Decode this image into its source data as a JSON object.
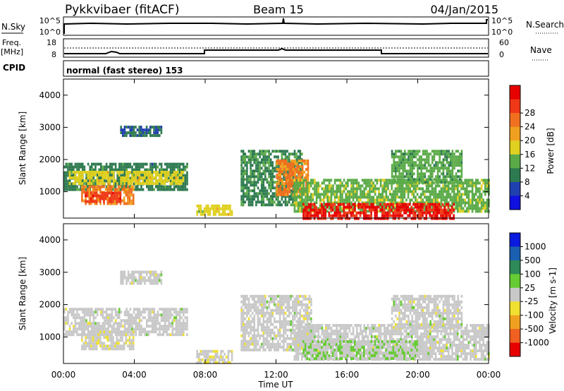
{
  "header": {
    "station": "Pykkvibaer (fitACF)",
    "beam": "Beam 15",
    "date": "04/Jan/2015"
  },
  "strips": {
    "nsky_label": "N.Sky",
    "nsearch_label": "N.Search",
    "freq_label_top": "Freq.",
    "freq_label_unit": "[MHz]",
    "cpid_label": "CPID",
    "nave_label": "Nave",
    "nsky_tick_top": "10^5",
    "nsky_tick_bottom": "10^0",
    "nsearch_tick_top": "10^5",
    "nsearch_tick_bottom": "10^0",
    "freq_tick_top": "18",
    "freq_tick_bottom": "8",
    "nave_tick_top": "60",
    "nave_tick_bottom": "0",
    "cpid_text": "normal (fast stereo) 153"
  },
  "axes": {
    "ylabel": "Slant Range [km]",
    "xlabel": "Time UT",
    "yticks": [
      "1000",
      "2000",
      "3000",
      "4000"
    ],
    "xticks": [
      "00:00",
      "04:00",
      "08:00",
      "12:00",
      "16:00",
      "20:00",
      "00:00"
    ]
  },
  "power_scale": {
    "label": "Power [dB]",
    "ticks": [
      "4",
      "8",
      "12",
      "16",
      "20",
      "24",
      "28"
    ],
    "colors": [
      "#1010e0",
      "#2040b0",
      "#2e7a50",
      "#5aaa48",
      "#e0d020",
      "#f0a020",
      "#f07020",
      "#f03818",
      "#e80000"
    ]
  },
  "velocity_scale": {
    "label": "Velocity [m s-1]",
    "ticks": [
      "1000",
      "500",
      "100",
      "25",
      "-25",
      "-100",
      "-500",
      "-1000"
    ],
    "colors": [
      "#0a1ae0",
      "#1a5fb0",
      "#2e8a58",
      "#66cc33",
      "#c8c8c8",
      "#f0e030",
      "#f0a020",
      "#f06020",
      "#e80000"
    ]
  },
  "chart_data": [
    {
      "type": "heatmap",
      "title": "Power",
      "x_range": [
        "00:00",
        "24:00"
      ],
      "ylim": [
        180,
        4500
      ],
      "colorbar": {
        "label": "Power [dB]",
        "range": [
          0,
          32
        ]
      },
      "regions": [
        {
          "t0": 0.0,
          "t1": 7.0,
          "r0": 1100,
          "r1": 1900,
          "value": 9
        },
        {
          "t0": 0.3,
          "t1": 6.8,
          "r0": 1250,
          "r1": 1650,
          "value": 16
        },
        {
          "t0": 1.0,
          "t1": 4.0,
          "r0": 650,
          "r1": 1200,
          "value": 22
        },
        {
          "t0": 1.2,
          "t1": 3.2,
          "r0": 700,
          "r1": 1000,
          "value": 27
        },
        {
          "t0": 3.2,
          "t1": 5.5,
          "r0": 2700,
          "r1": 3050,
          "value": 7
        },
        {
          "t0": 7.5,
          "t1": 9.5,
          "r0": 250,
          "r1": 600,
          "value": 16
        },
        {
          "t0": 10.0,
          "t1": 13.5,
          "r0": 600,
          "r1": 2300,
          "value": 10
        },
        {
          "t0": 12.0,
          "t1": 13.8,
          "r0": 900,
          "r1": 2000,
          "value": 22
        },
        {
          "t0": 13.0,
          "t1": 24.0,
          "r0": 400,
          "r1": 1400,
          "value": 13
        },
        {
          "t0": 13.5,
          "t1": 22.0,
          "r0": 200,
          "r1": 650,
          "value": 29
        },
        {
          "t0": 18.5,
          "t1": 22.5,
          "r0": 1300,
          "r1": 2300,
          "value": 12
        }
      ]
    },
    {
      "type": "heatmap",
      "title": "Velocity",
      "x_range": [
        "00:00",
        "24:00"
      ],
      "ylim": [
        180,
        4500
      ],
      "colorbar": {
        "label": "Velocity [m s-1]",
        "range": [
          -1000,
          1000
        ]
      },
      "regions": [
        {
          "t0": 0.0,
          "t1": 7.0,
          "r0": 1100,
          "r1": 1900,
          "value": 0
        },
        {
          "t0": 1.0,
          "t1": 4.0,
          "r0": 650,
          "r1": 1200,
          "value": -40
        },
        {
          "t0": 3.2,
          "t1": 5.5,
          "r0": 2700,
          "r1": 3050,
          "value": 0
        },
        {
          "t0": 7.5,
          "t1": 9.5,
          "r0": 250,
          "r1": 600,
          "value": -60
        },
        {
          "t0": 10.0,
          "t1": 14.0,
          "r0": 600,
          "r1": 2300,
          "value": 0
        },
        {
          "t0": 13.0,
          "t1": 24.0,
          "r0": 300,
          "r1": 1400,
          "value": 0
        },
        {
          "t0": 13.5,
          "t1": 20.0,
          "r0": 300,
          "r1": 900,
          "value": 80
        },
        {
          "t0": 18.5,
          "t1": 22.5,
          "r0": 1300,
          "r1": 2300,
          "value": 0
        }
      ]
    }
  ]
}
